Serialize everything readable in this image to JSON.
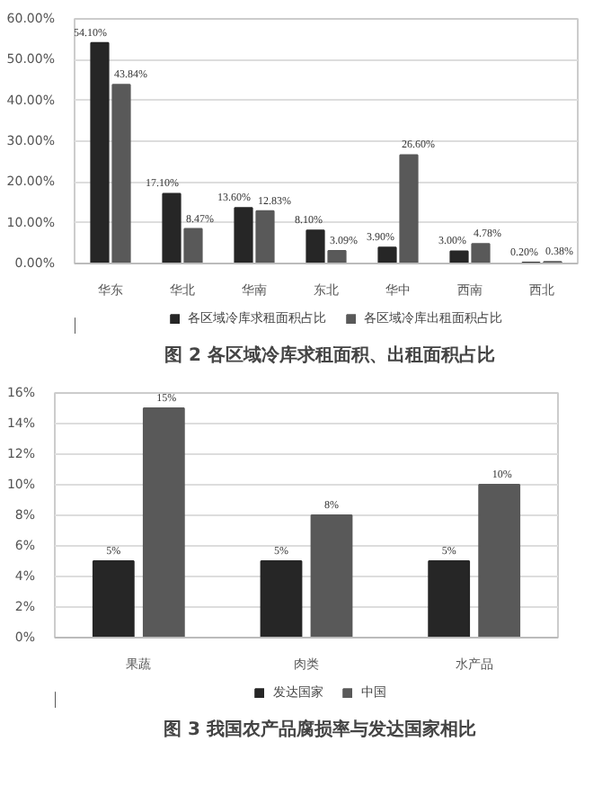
{
  "chart_data": [
    {
      "type": "bar",
      "title": "图 2   各区域冷库求租面积、出租面积占比",
      "categories": [
        "华东",
        "华北",
        "华南",
        "东北",
        "华中",
        "西南",
        "西北"
      ],
      "series": [
        {
          "name": "各区域冷库求租面积占比",
          "color": "#262626",
          "values": [
            54.1,
            17.1,
            13.6,
            8.1,
            3.9,
            3.0,
            0.2
          ],
          "value_labels": [
            "54.10%",
            "17.10%",
            "13.60%",
            "8.10%",
            "3.90%",
            "3.00%",
            "0.20%"
          ]
        },
        {
          "name": "各区域冷库出租面积占比",
          "color": "#595959",
          "values": [
            43.84,
            8.47,
            12.83,
            3.09,
            26.6,
            4.78,
            0.38
          ],
          "value_labels": [
            "43.84%",
            "8.47%",
            "12.83%",
            "3.09%",
            "26.60%",
            "4.78%",
            "0.38%"
          ]
        }
      ],
      "ylim": [
        0,
        60
      ],
      "yticks": [
        {
          "value": 0,
          "label": "0.00%"
        },
        {
          "value": 10,
          "label": "10.00%"
        },
        {
          "value": 20,
          "label": "20.00%"
        },
        {
          "value": 30,
          "label": "30.00%"
        },
        {
          "value": 40,
          "label": "40.00%"
        },
        {
          "value": 50,
          "label": "50.00%"
        },
        {
          "value": 60,
          "label": "60.00%"
        }
      ],
      "grid": "y",
      "legend": "bottom"
    },
    {
      "type": "bar",
      "title": "图 3   我国农产品腐损率与发达国家相比",
      "categories": [
        "果蔬",
        "肉类",
        "水产品"
      ],
      "series": [
        {
          "name": "发达国家",
          "color": "#262626",
          "values": [
            5,
            5,
            5
          ],
          "value_labels": [
            "5%",
            "5%",
            "5%"
          ]
        },
        {
          "name": "中国",
          "color": "#595959",
          "values": [
            15,
            8,
            10
          ],
          "value_labels": [
            "15%",
            "8%",
            "10%"
          ]
        }
      ],
      "ylim": [
        0,
        16
      ],
      "yticks": [
        {
          "value": 0,
          "label": "0%"
        },
        {
          "value": 2,
          "label": "2%"
        },
        {
          "value": 4,
          "label": "4%"
        },
        {
          "value": 6,
          "label": "6%"
        },
        {
          "value": 8,
          "label": "8%"
        },
        {
          "value": 10,
          "label": "10%"
        },
        {
          "value": 12,
          "label": "12%"
        },
        {
          "value": 14,
          "label": "14%"
        },
        {
          "value": 16,
          "label": "16%"
        }
      ],
      "grid": "y",
      "legend": "bottom"
    }
  ]
}
